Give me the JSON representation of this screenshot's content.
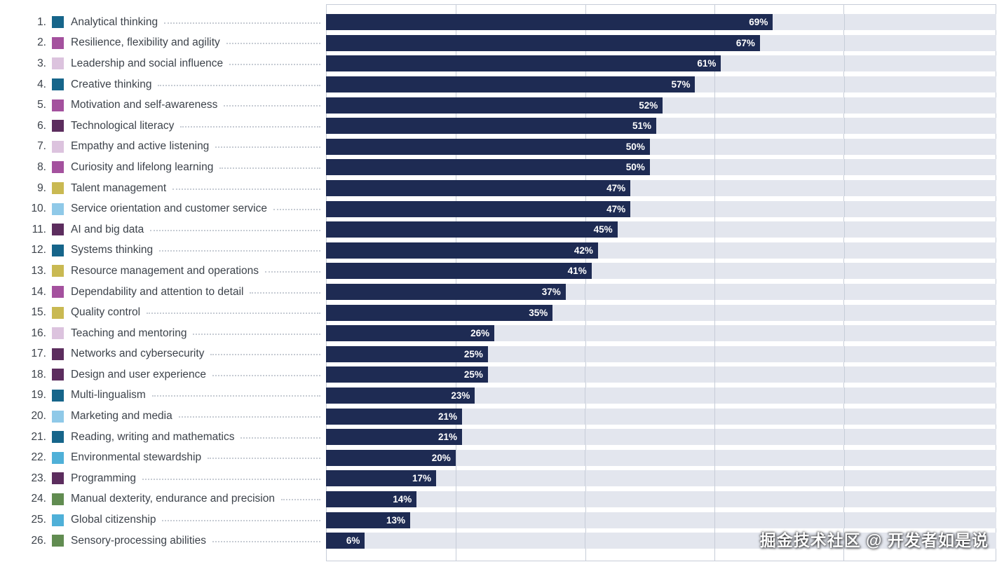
{
  "watermark": {
    "text": "掘金技术社区 @ 开发者如是说"
  },
  "chart_data": {
    "type": "bar",
    "orientation": "horizontal",
    "title": "",
    "xlabel": "",
    "ylabel": "",
    "xlim": [
      0,
      100
    ],
    "plot_scale_max": 103.5,
    "gridlines_pct": [
      20,
      40,
      60,
      80
    ],
    "grid": true,
    "bar_color": "#1e2b53",
    "band_color": "#e3e6ee",
    "items": [
      {
        "rank": "1.",
        "label": "Analytical thinking",
        "value": 69,
        "value_label": "69%",
        "color": "#16658a"
      },
      {
        "rank": "2.",
        "label": "Resilience, flexibility and agility",
        "value": 67,
        "value_label": "67%",
        "color": "#a4519e"
      },
      {
        "rank": "3.",
        "label": "Leadership and social influence",
        "value": 61,
        "value_label": "61%",
        "color": "#dcc3de"
      },
      {
        "rank": "4.",
        "label": "Creative thinking",
        "value": 57,
        "value_label": "57%",
        "color": "#16658a"
      },
      {
        "rank": "5.",
        "label": "Motivation and self-awareness",
        "value": 52,
        "value_label": "52%",
        "color": "#a4519e"
      },
      {
        "rank": "6.",
        "label": "Technological literacy",
        "value": 51,
        "value_label": "51%",
        "color": "#5c2d5e"
      },
      {
        "rank": "7.",
        "label": "Empathy and active listening",
        "value": 50,
        "value_label": "50%",
        "color": "#dcc3de"
      },
      {
        "rank": "8.",
        "label": "Curiosity and lifelong learning",
        "value": 50,
        "value_label": "50%",
        "color": "#a4519e"
      },
      {
        "rank": "9.",
        "label": "Talent management",
        "value": 47,
        "value_label": "47%",
        "color": "#c9b952"
      },
      {
        "rank": "10.",
        "label": "Service orientation and customer service",
        "value": 47,
        "value_label": "47%",
        "color": "#8fc9e8"
      },
      {
        "rank": "11.",
        "label": "AI and big data",
        "value": 45,
        "value_label": "45%",
        "color": "#5c2d5e"
      },
      {
        "rank": "12.",
        "label": "Systems thinking",
        "value": 42,
        "value_label": "42%",
        "color": "#16658a"
      },
      {
        "rank": "13.",
        "label": "Resource management and operations",
        "value": 41,
        "value_label": "41%",
        "color": "#c9b952"
      },
      {
        "rank": "14.",
        "label": "Dependability and attention to detail",
        "value": 37,
        "value_label": "37%",
        "color": "#a4519e"
      },
      {
        "rank": "15.",
        "label": "Quality control",
        "value": 35,
        "value_label": "35%",
        "color": "#c9b952"
      },
      {
        "rank": "16.",
        "label": "Teaching and mentoring",
        "value": 26,
        "value_label": "26%",
        "color": "#dcc3de"
      },
      {
        "rank": "17.",
        "label": "Networks and cybersecurity",
        "value": 25,
        "value_label": "25%",
        "color": "#5c2d5e"
      },
      {
        "rank": "18.",
        "label": "Design and user experience",
        "value": 25,
        "value_label": "25%",
        "color": "#5c2d5e"
      },
      {
        "rank": "19.",
        "label": "Multi-lingualism",
        "value": 23,
        "value_label": "23%",
        "color": "#16658a"
      },
      {
        "rank": "20.",
        "label": "Marketing and media",
        "value": 21,
        "value_label": "21%",
        "color": "#8fc9e8"
      },
      {
        "rank": "21.",
        "label": "Reading, writing and mathematics",
        "value": 21,
        "value_label": "21%",
        "color": "#16658a"
      },
      {
        "rank": "22.",
        "label": "Environmental stewardship",
        "value": 20,
        "value_label": "20%",
        "color": "#4fb0d8"
      },
      {
        "rank": "23.",
        "label": "Programming",
        "value": 17,
        "value_label": "17%",
        "color": "#5c2d5e"
      },
      {
        "rank": "24.",
        "label": "Manual dexterity, endurance and precision",
        "value": 14,
        "value_label": "14%",
        "color": "#618c51"
      },
      {
        "rank": "25.",
        "label": "Global citizenship",
        "value": 13,
        "value_label": "13%",
        "color": "#4fb0d8"
      },
      {
        "rank": "26.",
        "label": "Sensory-processing abilities",
        "value": 6,
        "value_label": "6%",
        "color": "#618c51"
      }
    ]
  }
}
